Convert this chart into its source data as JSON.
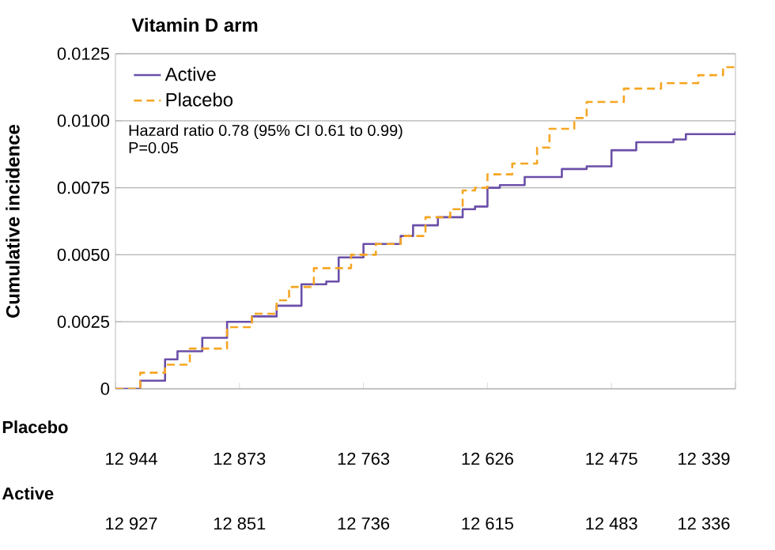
{
  "chart_data": {
    "type": "step",
    "title": "Vitamin D arm",
    "ylabel": "Cumulative incidence",
    "categories": [
      null,
      null,
      null,
      null,
      null,
      null,
      null,
      null,
      null,
      null,
      null,
      null,
      null,
      null,
      null,
      null,
      null,
      null,
      null,
      null,
      null,
      null,
      null,
      null,
      null,
      null,
      null,
      null,
      null,
      null,
      null,
      null,
      null,
      null,
      null,
      null,
      null,
      null,
      null,
      null,
      null,
      null,
      null,
      null,
      null,
      null,
      null,
      null,
      null,
      null,
      null
    ],
    "ylim": [
      0,
      0.0125
    ],
    "yticks": [
      {
        "value": 0,
        "label": "0"
      },
      {
        "value": 0.0025,
        "label": "0.0025"
      },
      {
        "value": 0.005,
        "label": "0.0050"
      },
      {
        "value": 0.0075,
        "label": "0.0075"
      },
      {
        "value": 0.01,
        "label": "0.0100"
      },
      {
        "value": 0.0125,
        "label": "0.0125"
      }
    ],
    "grid": "y",
    "legend": "top left",
    "series": [
      {
        "name": "Active",
        "color": "#6a4fa8",
        "line_style": "solid",
        "values": [
          0,
          0,
          0.0003,
          0.0003,
          0.0011,
          0.0014,
          0.0014,
          0.0019,
          0.0019,
          0.0025,
          0.0025,
          0.0027,
          0.0027,
          0.0031,
          0.0031,
          0.0039,
          0.0039,
          0.004,
          0.0049,
          0.0049,
          0.0054,
          0.0054,
          0.0054,
          0.0057,
          0.0061,
          0.0061,
          0.0064,
          0.0064,
          0.0067,
          0.0068,
          0.0075,
          0.0076,
          0.0076,
          0.0079,
          0.0079,
          0.0079,
          0.0082,
          0.0082,
          0.0083,
          0.0083,
          0.0089,
          0.0089,
          0.0092,
          0.0092,
          0.0092,
          0.0093,
          0.0095,
          0.0095,
          0.0095,
          0.0095,
          0.0096
        ]
      },
      {
        "name": "Placebo",
        "color": "#f5a623",
        "line_style": "dashed",
        "values": [
          0,
          0,
          0.0006,
          0.0006,
          0.0009,
          0.0009,
          0.0015,
          0.0015,
          0.0015,
          0.0023,
          0.0023,
          0.0028,
          0.0028,
          0.0033,
          0.0038,
          0.0038,
          0.0045,
          0.0045,
          0.0045,
          0.005,
          0.005,
          0.0054,
          0.0054,
          0.0057,
          0.0057,
          0.0064,
          0.0064,
          0.0067,
          0.0074,
          0.0075,
          0.008,
          0.008,
          0.0084,
          0.0084,
          0.009,
          0.0097,
          0.0097,
          0.0101,
          0.0107,
          0.0107,
          0.0107,
          0.0112,
          0.0112,
          0.0112,
          0.0114,
          0.0114,
          0.0114,
          0.0117,
          0.0117,
          0.012,
          0.012
        ]
      }
    ],
    "annotations": [
      "Hazard ratio 0.78 (95% CI 0.61 to 0.99)",
      "P=0.05",
      "Placebo",
      "12 944",
      "12 873",
      "12 763",
      "12 626",
      "12 475",
      "12 339",
      "Active",
      "12 927",
      "12 851",
      "12 736",
      "12 615",
      "12 483",
      "12 336"
    ]
  }
}
